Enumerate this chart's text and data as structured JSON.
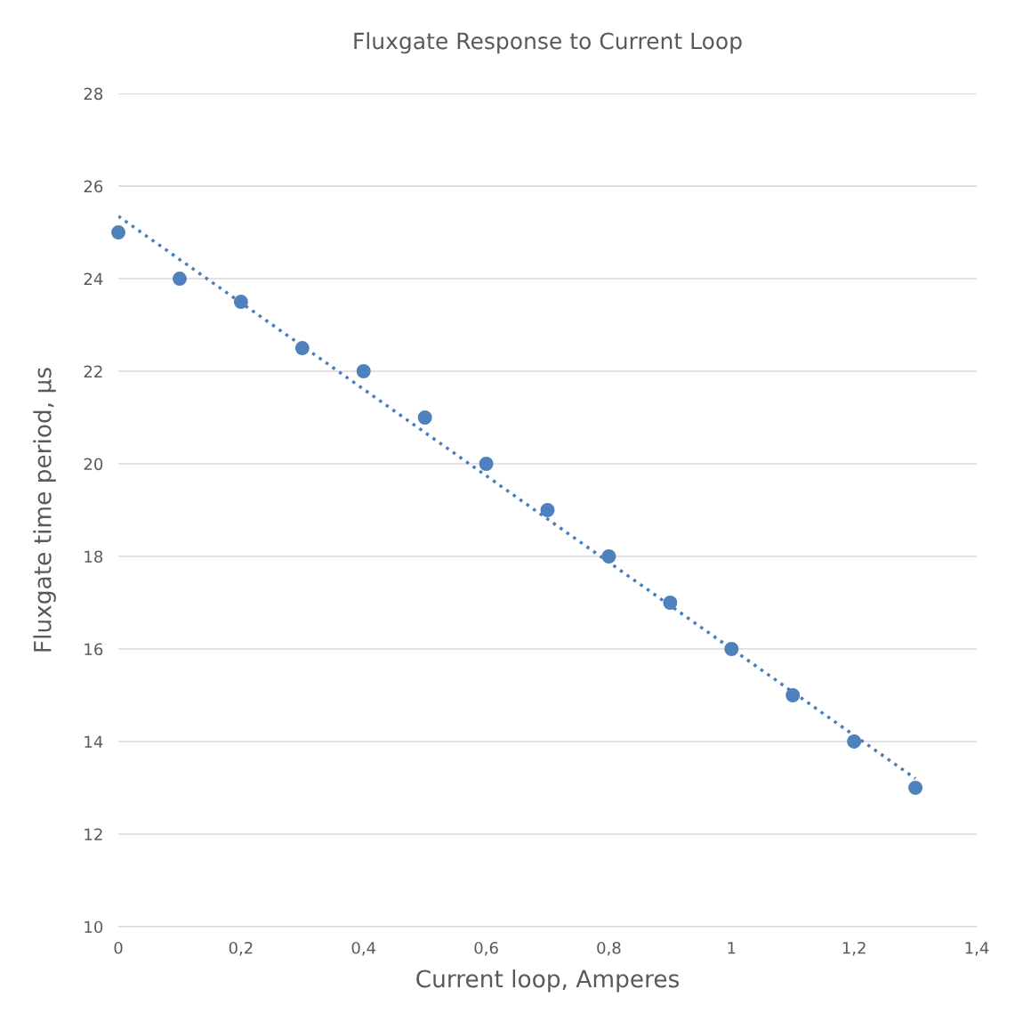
{
  "chart_data": {
    "type": "scatter",
    "title": "Fluxgate Response to Current Loop",
    "xlabel": "Current loop, Amperes",
    "ylabel": "Fluxgate time period, µs",
    "xlim": [
      0,
      1.4
    ],
    "xticks": [
      0,
      {
        "value": 0.2,
        "label": "0,2"
      },
      {
        "value": 0.4,
        "label": "0,4"
      },
      {
        "value": 0.6,
        "label": "0,6"
      },
      {
        "value": 0.8,
        "label": "0,8"
      },
      1,
      {
        "value": 1.2,
        "label": "1,2"
      },
      {
        "value": 1.4,
        "label": "1,4"
      }
    ],
    "ylim": [
      10,
      28
    ],
    "yticks": [
      10,
      12,
      14,
      16,
      18,
      20,
      22,
      24,
      26,
      28
    ],
    "grid": "y",
    "legend": false,
    "marker": "circle",
    "series": [
      {
        "color": "#4f81bd",
        "x": [
          0,
          0.1,
          0.2,
          0.3,
          0.4,
          0.5,
          0.6,
          0.7,
          0.8,
          0.9,
          1.0,
          1.1,
          1.2,
          1.3
        ],
        "values": [
          25,
          24,
          23.5,
          22.5,
          22,
          21,
          20,
          19,
          18,
          17,
          16,
          15,
          14,
          13
        ]
      },
      {
        "type": "line",
        "color": "#4a7ebb",
        "line_style": "dotted",
        "marker": "none",
        "x": [
          0,
          1.3
        ],
        "values": [
          25.35,
          13.2
        ]
      }
    ]
  }
}
